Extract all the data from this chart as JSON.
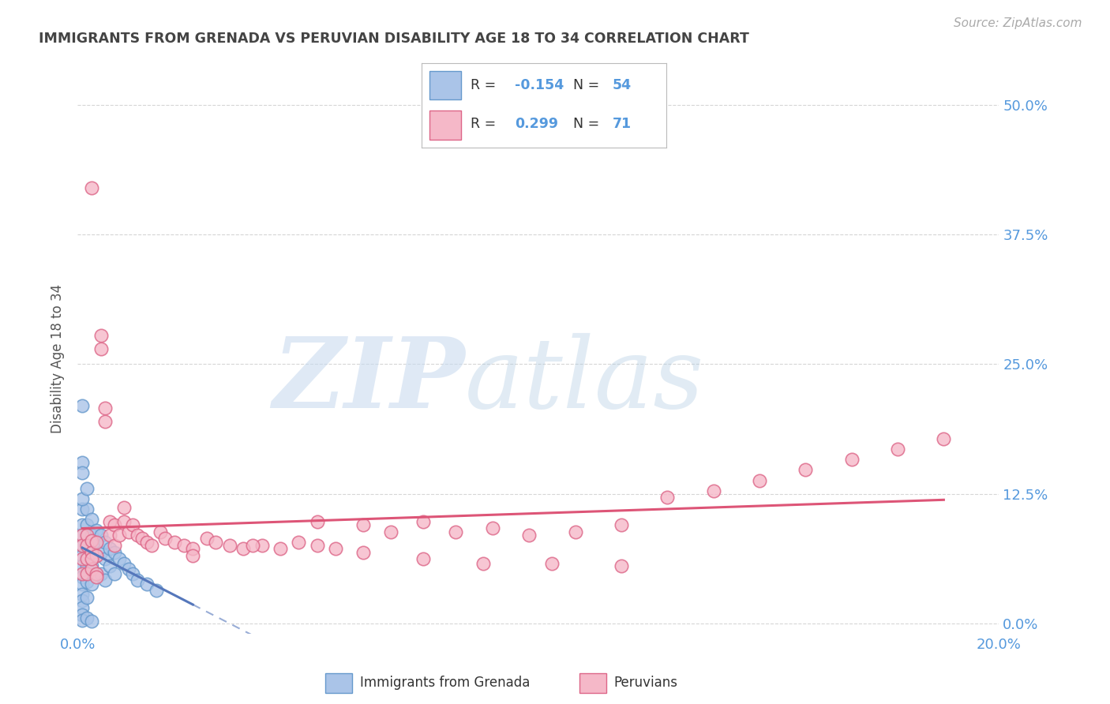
{
  "title": "IMMIGRANTS FROM GRENADA VS PERUVIAN DISABILITY AGE 18 TO 34 CORRELATION CHART",
  "source": "Source: ZipAtlas.com",
  "ylabel": "Disability Age 18 to 34",
  "xlim": [
    0.0,
    0.2
  ],
  "ylim": [
    -0.01,
    0.52
  ],
  "yticks": [
    0.0,
    0.125,
    0.25,
    0.375,
    0.5
  ],
  "ytick_labels_right": [
    "0.0%",
    "12.5%",
    "25.0%",
    "37.5%",
    "50.0%"
  ],
  "xticks": [
    0.0,
    0.05,
    0.1,
    0.15,
    0.2
  ],
  "xtick_labels": [
    "0.0%",
    "",
    "",
    "",
    "20.0%"
  ],
  "color_grenada_fill": "#aac4e8",
  "color_grenada_edge": "#6699cc",
  "color_peruvian_fill": "#f5b8c8",
  "color_peruvian_edge": "#dd6688",
  "color_grenada_line": "#5577bb",
  "color_peruvian_line": "#dd5577",
  "color_axis_labels": "#5599dd",
  "color_title": "#444444",
  "background_color": "#ffffff",
  "watermark_zip": "ZIP",
  "watermark_atlas": "atlas",
  "grenada_x": [
    0.001,
    0.001,
    0.001,
    0.001,
    0.001,
    0.001,
    0.001,
    0.001,
    0.001,
    0.001,
    0.001,
    0.001,
    0.001,
    0.001,
    0.001,
    0.002,
    0.002,
    0.002,
    0.002,
    0.002,
    0.002,
    0.002,
    0.002,
    0.003,
    0.003,
    0.003,
    0.003,
    0.003,
    0.004,
    0.004,
    0.004,
    0.004,
    0.005,
    0.005,
    0.005,
    0.006,
    0.006,
    0.006,
    0.007,
    0.007,
    0.008,
    0.008,
    0.009,
    0.01,
    0.011,
    0.012,
    0.013,
    0.015,
    0.017,
    0.002,
    0.003,
    0.001,
    0.002,
    0.001
  ],
  "grenada_y": [
    0.21,
    0.155,
    0.11,
    0.095,
    0.085,
    0.075,
    0.065,
    0.055,
    0.045,
    0.038,
    0.028,
    0.022,
    0.015,
    0.008,
    0.003,
    0.11,
    0.095,
    0.085,
    0.075,
    0.065,
    0.055,
    0.04,
    0.025,
    0.1,
    0.085,
    0.075,
    0.055,
    0.038,
    0.09,
    0.078,
    0.065,
    0.048,
    0.085,
    0.068,
    0.048,
    0.078,
    0.062,
    0.042,
    0.072,
    0.055,
    0.068,
    0.048,
    0.062,
    0.058,
    0.052,
    0.048,
    0.042,
    0.038,
    0.032,
    0.005,
    0.002,
    0.12,
    0.13,
    0.145
  ],
  "peruvian_x": [
    0.001,
    0.001,
    0.001,
    0.001,
    0.002,
    0.002,
    0.002,
    0.002,
    0.003,
    0.003,
    0.003,
    0.004,
    0.004,
    0.004,
    0.005,
    0.005,
    0.006,
    0.006,
    0.007,
    0.007,
    0.008,
    0.008,
    0.009,
    0.01,
    0.01,
    0.011,
    0.012,
    0.013,
    0.014,
    0.015,
    0.016,
    0.018,
    0.019,
    0.021,
    0.023,
    0.025,
    0.028,
    0.03,
    0.033,
    0.036,
    0.04,
    0.044,
    0.048,
    0.052,
    0.056,
    0.062,
    0.068,
    0.075,
    0.082,
    0.09,
    0.098,
    0.108,
    0.118,
    0.128,
    0.138,
    0.148,
    0.158,
    0.168,
    0.178,
    0.188,
    0.052,
    0.038,
    0.025,
    0.062,
    0.075,
    0.088,
    0.103,
    0.118,
    0.003,
    0.003,
    0.004
  ],
  "peruvian_y": [
    0.085,
    0.075,
    0.062,
    0.048,
    0.085,
    0.075,
    0.062,
    0.048,
    0.08,
    0.068,
    0.052,
    0.078,
    0.065,
    0.048,
    0.278,
    0.265,
    0.208,
    0.195,
    0.098,
    0.085,
    0.095,
    0.075,
    0.085,
    0.112,
    0.098,
    0.088,
    0.095,
    0.085,
    0.082,
    0.078,
    0.075,
    0.088,
    0.082,
    0.078,
    0.075,
    0.072,
    0.082,
    0.078,
    0.075,
    0.072,
    0.075,
    0.072,
    0.078,
    0.075,
    0.072,
    0.095,
    0.088,
    0.098,
    0.088,
    0.092,
    0.085,
    0.088,
    0.095,
    0.122,
    0.128,
    0.138,
    0.148,
    0.158,
    0.168,
    0.178,
    0.098,
    0.075,
    0.065,
    0.068,
    0.062,
    0.058,
    0.058,
    0.055,
    0.42,
    0.062,
    0.045
  ]
}
